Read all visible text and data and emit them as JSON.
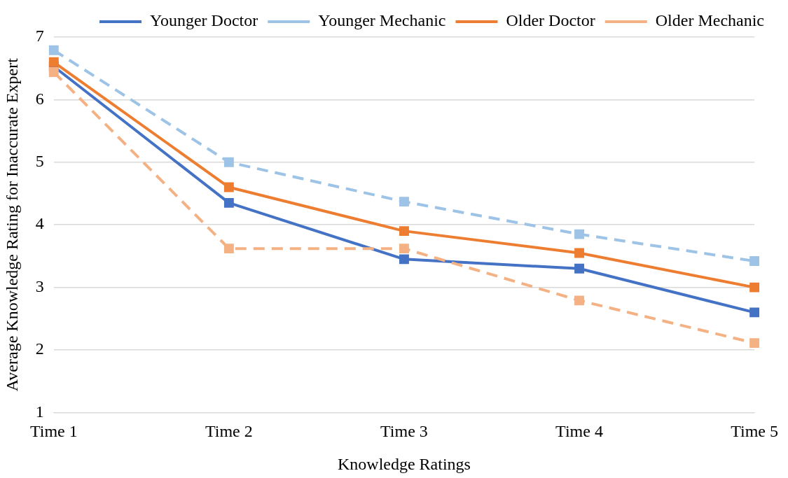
{
  "chart_data": {
    "type": "line",
    "xlabel": "Knowledge Ratings",
    "ylabel": "Average Knowledge Rating for Inaccurate Expert",
    "categories": [
      "Time 1",
      "Time 2",
      "Time 3",
      "Time 4",
      "Time 5"
    ],
    "series": [
      {
        "name": "Younger Doctor",
        "color": "#4472c4",
        "line_style": "solid",
        "values": [
          6.53,
          4.35,
          3.45,
          3.3,
          2.6
        ]
      },
      {
        "name": "Younger Mechanic",
        "color": "#9dc3e6",
        "line_style": "dashed",
        "values": [
          6.79,
          5.0,
          4.37,
          3.85,
          3.42
        ]
      },
      {
        "name": "Older Doctor",
        "color": "#ed7d31",
        "line_style": "solid",
        "values": [
          6.6,
          4.6,
          3.9,
          3.55,
          3.0
        ]
      },
      {
        "name": "Older Mechanic",
        "color": "#f4b183",
        "line_style": "dashed",
        "values": [
          6.44,
          3.62,
          3.62,
          2.79,
          2.11
        ]
      }
    ],
    "ylim": [
      1,
      7
    ],
    "yticks": [
      1,
      2,
      3,
      4,
      5,
      6,
      7
    ],
    "grid": "y",
    "legend": "top right",
    "marker": "square"
  }
}
